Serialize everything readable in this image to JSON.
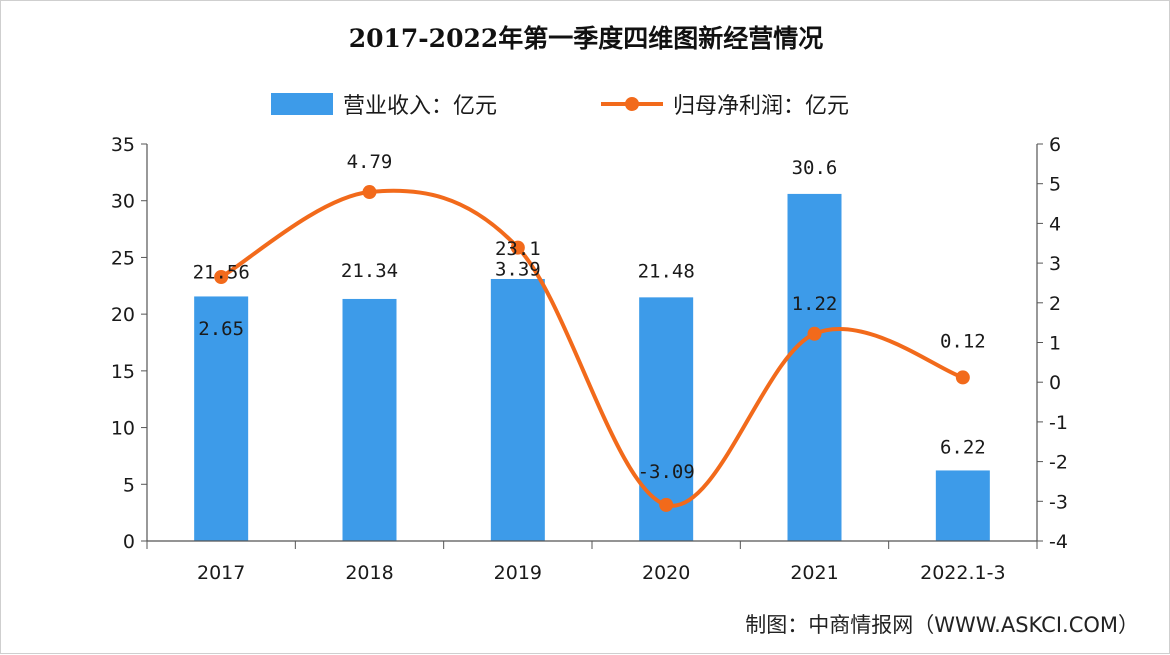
{
  "chart_data": {
    "type": "bar",
    "title": "2017-2022年第一季度四维图新经营情况",
    "categories": [
      "2017",
      "2018",
      "2019",
      "2020",
      "2021",
      "2022.1-3"
    ],
    "series": [
      {
        "name": "营业收入：亿元",
        "type": "bar",
        "axis": "left",
        "values": [
          21.56,
          21.34,
          23.1,
          21.48,
          30.6,
          6.22
        ],
        "labels": [
          "21.56",
          "21.34",
          "23.1",
          "21.48",
          "30.6",
          "6.22"
        ]
      },
      {
        "name": "归母净利润：亿元",
        "type": "line",
        "axis": "right",
        "values": [
          2.65,
          4.79,
          3.39,
          -3.09,
          1.22,
          0.12
        ],
        "labels": [
          "2.65",
          "4.79",
          "3.39",
          "-3.09",
          "1.22",
          "0.12"
        ]
      }
    ],
    "y_left": {
      "min": 0,
      "max": 35,
      "ticks": [
        "0",
        "5",
        "10",
        "15",
        "20",
        "25",
        "30",
        "35"
      ]
    },
    "y_right": {
      "min": -4,
      "max": 6,
      "ticks": [
        "-4",
        "-3",
        "-2",
        "-1",
        "0",
        "1",
        "2",
        "3",
        "4",
        "5",
        "6"
      ]
    },
    "xlabel": "",
    "ylabel": "",
    "grid": false,
    "legend": "top-center",
    "colors": {
      "bar": "#3d9be9",
      "line": "#f26a1b",
      "axis": "#555555"
    }
  },
  "source": "制图：中商情报网（WWW.ASKCI.COM）"
}
